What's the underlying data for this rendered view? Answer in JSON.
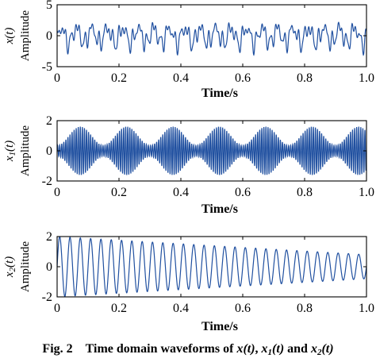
{
  "caption": {
    "prefix": "Fig. 2",
    "text": "Time domain waveforms of",
    "var1": "x",
    "var2_base": "x",
    "var2_sub": "1",
    "and_text": "and",
    "var3_base": "x",
    "var3_sub": "2",
    "arg": "(t)",
    "comma": ","
  },
  "chart_data": [
    {
      "type": "line",
      "ylabel": "Amplitude",
      "yvar": "x",
      "yvar_sub": "",
      "yvar_arg": "(t)",
      "xlabel": "Time/s",
      "xlim": [
        0,
        1.0
      ],
      "ylim": [
        -5,
        5
      ],
      "xticks": [
        0,
        0.2,
        0.4,
        0.6,
        0.8,
        1.0
      ],
      "xtick_labels": [
        "0",
        "0.2",
        "0.4",
        "0.6",
        "0.8",
        "1.0"
      ],
      "yticks": [
        -5,
        0,
        5
      ],
      "ytick_labels": [
        "-5",
        "0",
        "5"
      ],
      "line_color": "#2050a0",
      "series": [
        {
          "model": "sum_of_sinusoids",
          "components": [
            {
              "amplitude": 1.2,
              "frequency": 20
            },
            {
              "amplitude": 0.9,
              "frequency": 45
            },
            {
              "amplitude": 0.6,
              "frequency": 65
            },
            {
              "amplitude": 0.5,
              "frequency": 93
            }
          ],
          "t_start": 0,
          "t_end": 1.0,
          "samples": 1400
        }
      ]
    },
    {
      "type": "line",
      "ylabel": "Amplitude",
      "yvar": "x",
      "yvar_sub": "1",
      "yvar_arg": "(t)",
      "xlabel": "Time/s",
      "xlim": [
        0,
        1.0
      ],
      "ylim": [
        -2,
        2
      ],
      "xticks": [
        0,
        0.2,
        0.4,
        0.6,
        0.8,
        1.0
      ],
      "xtick_labels": [
        "0",
        "0.2",
        "0.4",
        "0.6",
        "0.8",
        "1.0"
      ],
      "yticks": [
        -2,
        0,
        2
      ],
      "ytick_labels": [
        "-2",
        "0",
        "2"
      ],
      "line_color": "#2050a0",
      "series": [
        {
          "model": "amplitude_modulated",
          "carrier_frequency": 150,
          "envelope_frequency": 6.67,
          "peak_amplitude": 1.6,
          "min_amplitude": 0.35,
          "t_start": 0,
          "t_end": 1.0,
          "samples": 2400
        }
      ]
    },
    {
      "type": "line",
      "ylabel": "Amplitude",
      "yvar": "x",
      "yvar_sub": "2",
      "yvar_arg": "(t)",
      "xlabel": "Time/s",
      "xlim": [
        0,
        1.0
      ],
      "ylim": [
        -2,
        2
      ],
      "xticks": [
        0,
        0.2,
        0.4,
        0.6,
        0.8,
        1.0
      ],
      "xtick_labels": [
        "0",
        "0.2",
        "0.4",
        "0.6",
        "0.8",
        "1.0"
      ],
      "yticks": [
        -2,
        0,
        2
      ],
      "ytick_labels": [
        "-2",
        "0",
        "2"
      ],
      "line_color": "#2050a0",
      "series": [
        {
          "model": "decaying_sinusoid",
          "frequency": 30,
          "amplitude_start": 2.0,
          "amplitude_end": 0.8,
          "t_start": 0,
          "t_end": 1.0,
          "samples": 1600
        }
      ]
    }
  ]
}
